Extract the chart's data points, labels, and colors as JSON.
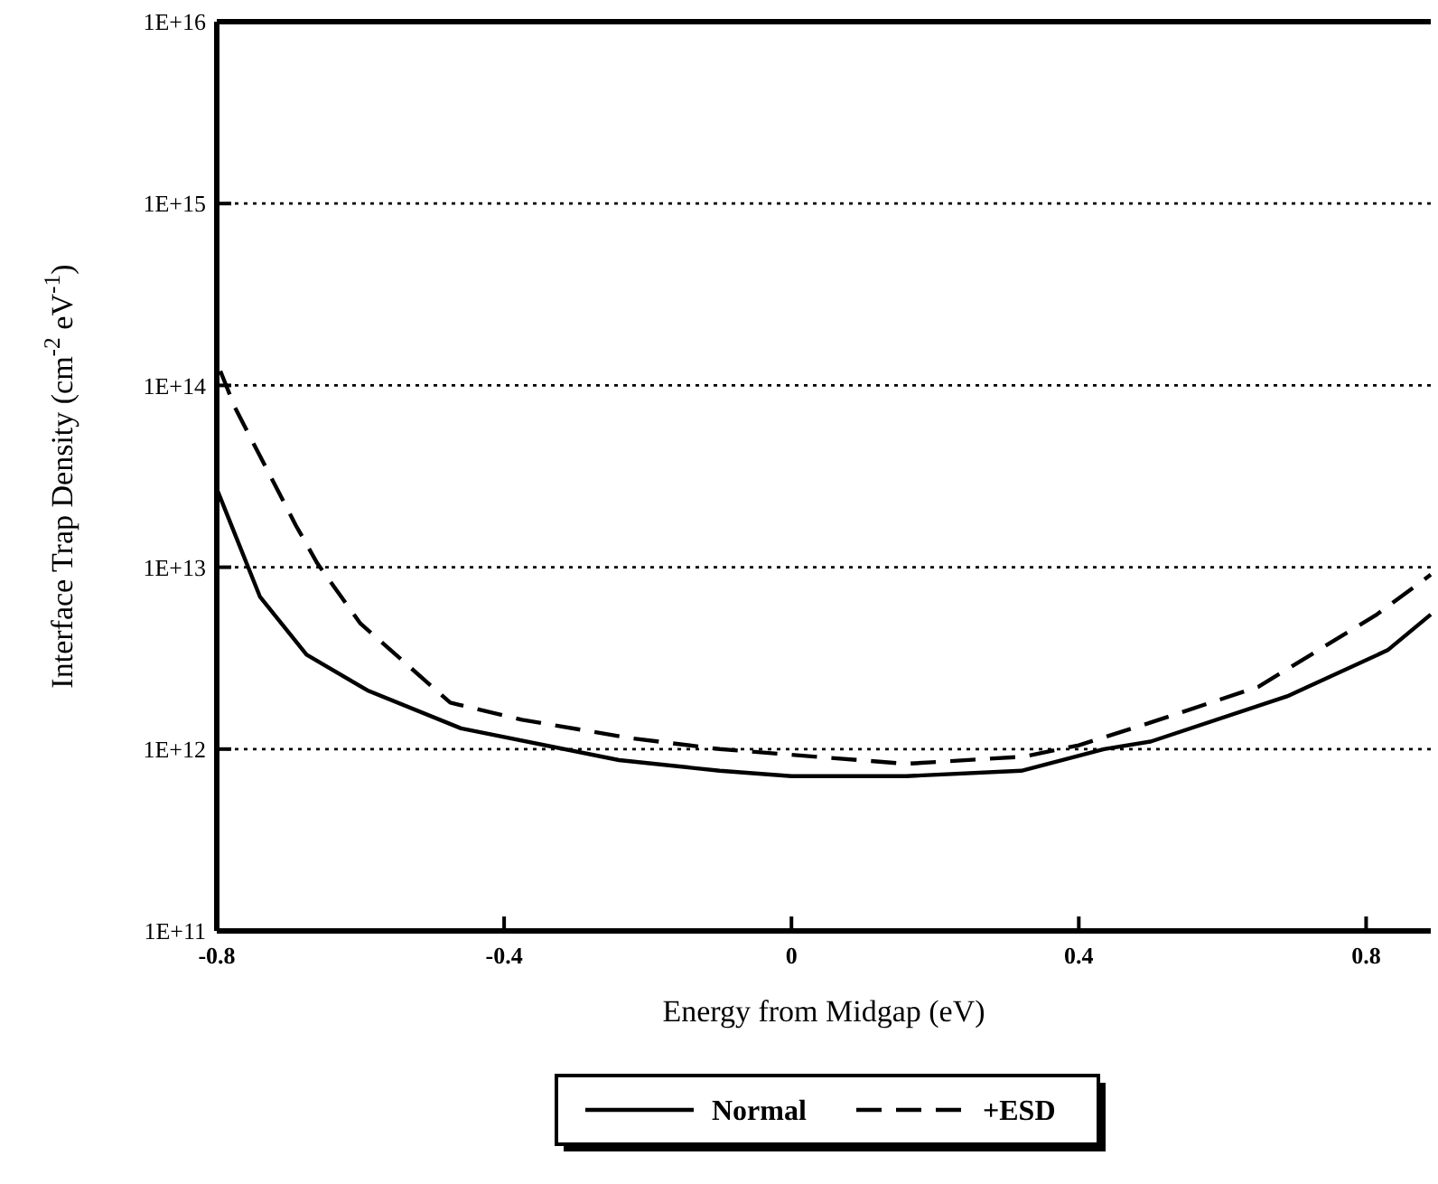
{
  "chart_data": {
    "type": "line",
    "xlabel": "Energy from Midgap (eV)",
    "ylabel": "Interface Trap Density (cm$^{-2}$ eV$^{-1}$)",
    "log": "y",
    "grid": "y",
    "legend": "bottom",
    "xlim": [
      -0.8,
      0.89
    ],
    "xticks": [
      -0.8,
      -0.4,
      0,
      0.4,
      0.8
    ],
    "ylim": [
      100000000000.0,
      1e+16
    ],
    "yticks": [
      {
        "value": 100000000000.0,
        "label": "1E+11"
      },
      {
        "value": 1000000000000.0,
        "label": "1E+12"
      },
      {
        "value": 10000000000000.0,
        "label": "1E+13"
      },
      {
        "value": 100000000000000.0,
        "label": "1E+14"
      },
      {
        "value": 1000000000000000.0,
        "label": "1E+15"
      },
      {
        "value": 1e+16,
        "label": "1E+16"
      }
    ],
    "series": [
      {
        "name": "Normal",
        "color": "#000000",
        "line_style": "solid",
        "x": [
          -0.8,
          -0.74,
          -0.675,
          -0.59,
          -0.46,
          -0.24,
          -0.1,
          0,
          0.16,
          0.32,
          0.435,
          0.5,
          0.69,
          0.83,
          0.89
        ],
        "values": [
          27000000000000.0,
          6900000000000.0,
          3300000000000.0,
          2100000000000.0,
          1300000000000.0,
          870000000000.0,
          760000000000.0,
          710000000000.0,
          710000000000.0,
          760000000000.0,
          1000000000000.0,
          1100000000000.0,
          1950000000000.0,
          3500000000000.0,
          5500000000000.0
        ]
      },
      {
        "name": "+ESD",
        "color": "#000000",
        "line_style": "dashed",
        "x": [
          -0.795,
          -0.775,
          -0.69,
          -0.66,
          -0.6,
          -0.475,
          -0.375,
          -0.225,
          -0.1,
          0,
          0.16,
          0.325,
          0.4,
          0.5,
          0.65,
          0.815,
          0.89
        ],
        "values": [
          120000000000000.0,
          76000000000000.0,
          17000000000000.0,
          10500000000000.0,
          4900000000000.0,
          1800000000000.0,
          1450000000000.0,
          1150000000000.0,
          1000000000000.0,
          930000000000.0,
          830000000000.0,
          910000000000.0,
          1050000000000.0,
          1400000000000.0,
          2200000000000.0,
          5500000000000.0,
          9100000000000.0
        ]
      }
    ]
  }
}
